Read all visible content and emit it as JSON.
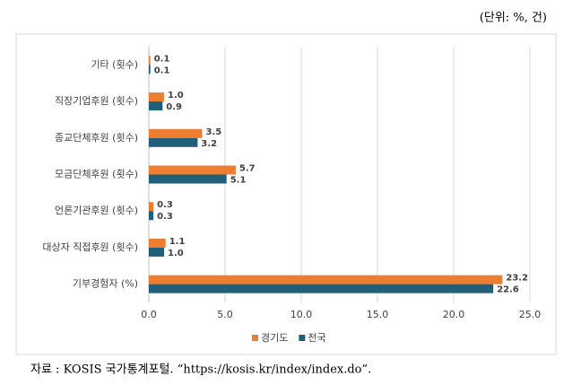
{
  "unit_note": "(단위: %, 건)",
  "source": "자료 : KOSIS 국가통계포털. “https://kosis.kr/index/index.do”.",
  "chart_data": {
    "type": "bar",
    "orientation": "horizontal",
    "categories": [
      "기타 (횟수)",
      "직장기업후원 (횟수)",
      "종교단체후원 (횟수)",
      "모금단체후원 (횟수)",
      "언론기관후원 (횟수)",
      "대상자 직접후원 (횟수)",
      "기부경험자 (%)"
    ],
    "series": [
      {
        "name": "경기도",
        "color": "#ed7d31",
        "values": [
          0.1,
          1.0,
          3.5,
          5.7,
          0.3,
          1.1,
          23.2
        ],
        "value_labels": [
          "0.1",
          "1.0",
          "3.5",
          "5.7",
          "0.3",
          "1.1",
          "23.2"
        ]
      },
      {
        "name": "전국",
        "color": "#1f5f7a",
        "values": [
          0.1,
          0.9,
          3.2,
          5.1,
          0.3,
          1.0,
          22.6
        ],
        "value_labels": [
          "0.1",
          "0.9",
          "3.2",
          "5.1",
          "0.3",
          "1.0",
          "22.6"
        ]
      }
    ],
    "xlim": [
      0,
      25
    ],
    "xticks": [
      {
        "value": 0,
        "label": "0.0"
      },
      {
        "value": 5,
        "label": "5.0"
      },
      {
        "value": 10,
        "label": "10.0"
      },
      {
        "value": 15,
        "label": "15.0"
      },
      {
        "value": 20,
        "label": "20.0"
      },
      {
        "value": 25,
        "label": "25.0"
      }
    ],
    "grid": true,
    "legend": "bottom"
  }
}
